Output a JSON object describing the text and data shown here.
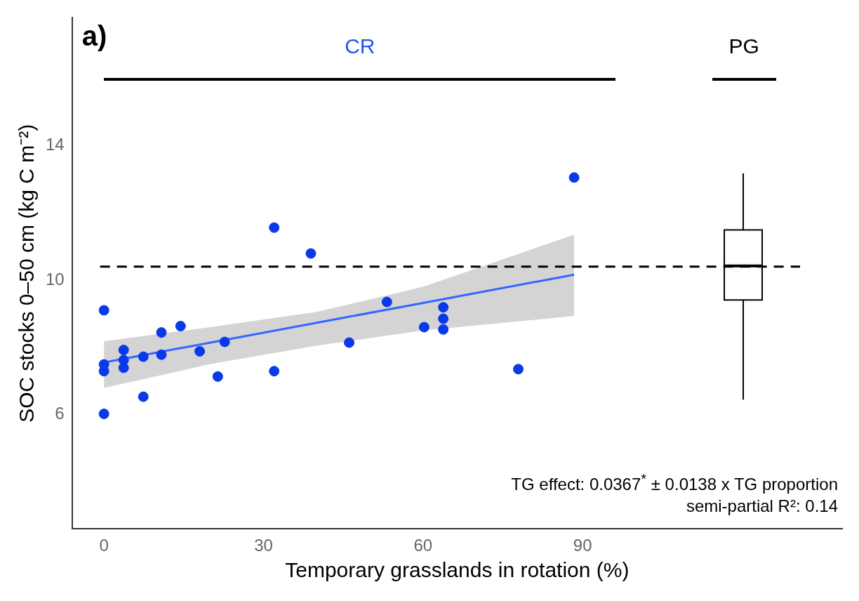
{
  "chart_data": {
    "type": "scatter",
    "xlabel": "Temporary grasslands in rotation (%)",
    "ylabel": "SOC stocks 0–50 cm (kg C m⁻²)",
    "xlim": [
      -6,
      138.8
    ],
    "xticks": [
      0,
      30,
      60,
      90
    ],
    "ylim": [
      2.6,
      17.8
    ],
    "yticks": [
      6,
      10,
      14
    ],
    "grid": false,
    "legend": false,
    "series": [
      {
        "marker": "circle",
        "color": "#0a3ae8",
        "x": [
          0,
          32,
          38.9,
          10.8,
          14.4,
          3.7,
          0,
          0,
          3.7,
          3.7,
          7.4,
          10.8,
          18,
          22.7,
          21.4,
          32,
          7.4,
          0,
          46.1,
          53.2,
          60.2,
          63.8,
          63.8,
          63.8,
          88.4,
          77.9
        ],
        "values": [
          9.1,
          11.56,
          10.79,
          8.44,
          8.63,
          7.92,
          7.49,
          7.29,
          7.62,
          7.39,
          7.72,
          7.78,
          7.88,
          8.16,
          7.13,
          7.29,
          6.53,
          6.02,
          8.14,
          9.35,
          8.6,
          9.19,
          8.85,
          8.53,
          13.05,
          7.35
        ]
      },
      {
        "type": "line",
        "color": "#3366ff",
        "x": [
          0,
          20,
          40,
          60,
          88.4
        ],
        "values": [
          7.55,
          8.14,
          8.73,
          9.32,
          10.16
        ],
        "lower": [
          6.79,
          7.5,
          8.05,
          8.5,
          8.93
        ],
        "upper": [
          8.18,
          8.6,
          9.05,
          9.8,
          11.35
        ]
      },
      {
        "type": "box",
        "color": "#000000",
        "x": [
          120.2
        ],
        "boxes": [
          {
            "low": 6.44,
            "q1": 9.41,
            "median": 10.42,
            "q3": 11.49,
            "high": 13.17
          }
        ]
      }
    ],
    "ref_lines": [
      {
        "axis": "y",
        "value": 10.4,
        "line_style": "dashed",
        "color": "#000000"
      }
    ],
    "annotations": [
      "a)",
      "CR",
      "PG",
      "TG effect: 0.0367$^{*}$ ± 0.0138 x TG proportion",
      "semi-partial R²: 0.14"
    ]
  }
}
